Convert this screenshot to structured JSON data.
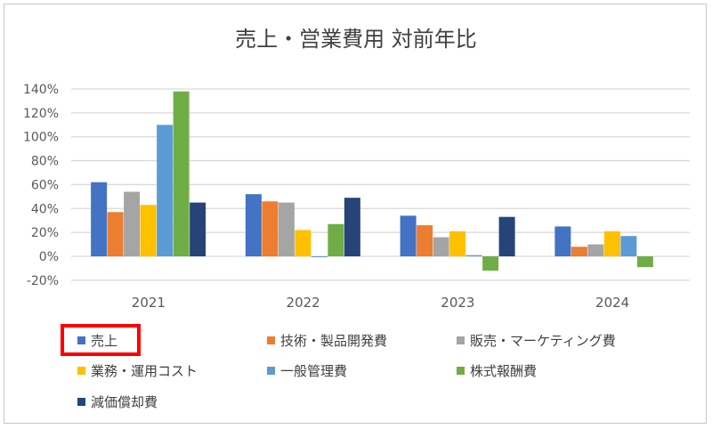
{
  "chart_data": {
    "type": "bar",
    "title": "売上・営業費用 対前年比",
    "xlabel": "",
    "ylabel": "",
    "categories": [
      "2021",
      "2022",
      "2023",
      "2024"
    ],
    "ylim": [
      -20,
      140
    ],
    "yticks": [
      -20,
      0,
      20,
      40,
      60,
      80,
      100,
      120,
      140
    ],
    "ytick_labels": [
      "-20%",
      "0%",
      "20%",
      "40%",
      "60%",
      "80%",
      "100%",
      "120%",
      "140%"
    ],
    "grid": true,
    "legend_position": "bottom",
    "series": [
      {
        "name": "売上",
        "color": "#4472c4",
        "values": [
          62,
          52,
          34,
          25
        ]
      },
      {
        "name": "技術・製品開発費",
        "color": "#ed7d31",
        "values": [
          37,
          46,
          26,
          8
        ]
      },
      {
        "name": "販売・マーケティング費",
        "color": "#a5a5a5",
        "values": [
          54,
          45,
          16,
          10
        ]
      },
      {
        "name": "業務・運用コスト",
        "color": "#ffc000",
        "values": [
          43,
          22,
          21,
          21
        ]
      },
      {
        "name": "一般管理費",
        "color": "#5b9bd5",
        "values": [
          110,
          0,
          1,
          17
        ]
      },
      {
        "name": "株式報酬費",
        "color": "#70ad47",
        "values": [
          138,
          27,
          -12,
          -9
        ]
      },
      {
        "name": "減価償却費",
        "color": "#264478",
        "values": [
          45,
          49,
          33,
          null
        ]
      }
    ],
    "highlighted_legend_item": "売上"
  }
}
